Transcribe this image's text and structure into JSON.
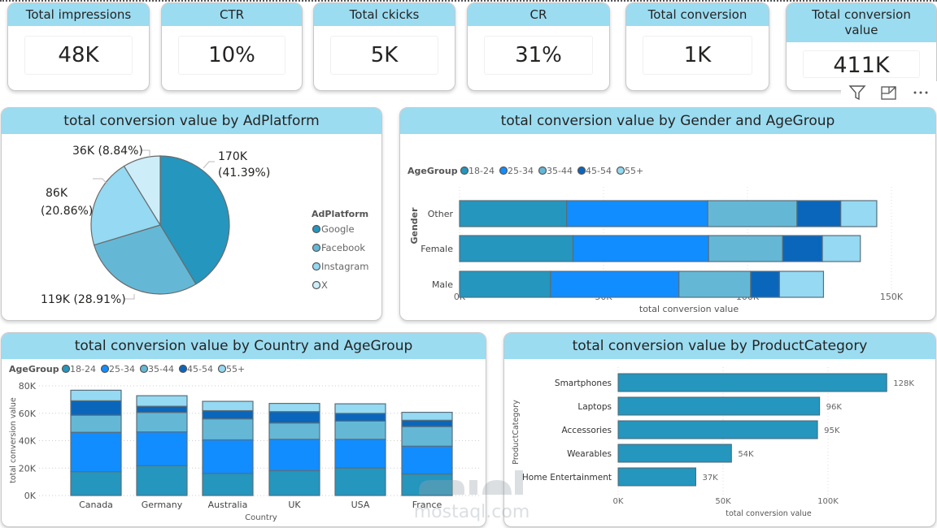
{
  "kpis": [
    {
      "label": "Total impressions",
      "value": "48K"
    },
    {
      "label": "CTR",
      "value": "10%"
    },
    {
      "label": "Total ckicks",
      "value": "5K"
    },
    {
      "label": "CR",
      "value": "31%"
    },
    {
      "label": "Total conversion",
      "value": "1K"
    },
    {
      "label": "Total conversion value",
      "value": "411K"
    }
  ],
  "visual_header": {
    "icons": [
      "filter-icon",
      "focus-mode-icon",
      "more-options-icon"
    ]
  },
  "colors": {
    "header_bg": "#9bdcf1",
    "age_18_24": "#2596be",
    "age_25_34": "#118dff",
    "age_35_44": "#64b8d6",
    "age_45_54": "#0a66bb",
    "age_55_plus": "#95d9f2",
    "google": "#2596be",
    "facebook": "#64b8d6",
    "instagram": "#95d9f2",
    "x": "#cdeef9"
  },
  "watermark": {
    "text": "mostaql.com"
  },
  "chart_data": [
    {
      "type": "pie",
      "title": "total conversion value by AdPlatform",
      "legend_title": "AdPlatform",
      "legend_position": "right",
      "slices": [
        {
          "name": "Google",
          "value": 170,
          "label": "170K",
          "pct": "(41.39%)"
        },
        {
          "name": "Facebook",
          "value": 119,
          "label": "119K",
          "pct": "(28.91%)"
        },
        {
          "name": "Instagram",
          "value": 86,
          "label": "86K",
          "pct": "(20.86%)"
        },
        {
          "name": "X",
          "value": 36,
          "label": "36K",
          "pct": "(8.84%)"
        }
      ]
    },
    {
      "type": "bar",
      "orientation": "horizontal-stacked",
      "title": "total conversion value by Gender and AgeGroup",
      "legend_title": "AgeGroup",
      "legend_position": "top-left",
      "categories": [
        "Other",
        "Female",
        "Male"
      ],
      "xlabel": "total conversion value",
      "ylabel": "Gender",
      "xlim": [
        0,
        150000
      ],
      "xticks": [
        "0K",
        "50K",
        "100K",
        "150K"
      ],
      "series": [
        {
          "name": "18-24",
          "values": [
            37200,
            39400,
            31600
          ]
        },
        {
          "name": "25-34",
          "values": [
            49000,
            47100,
            44600
          ]
        },
        {
          "name": "35-44",
          "values": [
            31000,
            25700,
            24900
          ]
        },
        {
          "name": "45-54",
          "values": [
            15200,
            13800,
            10000
          ]
        },
        {
          "name": "55+",
          "values": [
            12500,
            13200,
            15300
          ]
        }
      ]
    },
    {
      "type": "bar",
      "orientation": "vertical-stacked",
      "title": "total conversion value by Country and AgeGroup",
      "legend_title": "AgeGroup",
      "legend_position": "top-left",
      "categories": [
        "Canada",
        "Germany",
        "Australia",
        "UK",
        "USA",
        "France"
      ],
      "xlabel": "Country",
      "ylabel": "total conversion value",
      "ylim": [
        0,
        80000
      ],
      "yticks": [
        "0K",
        "20K",
        "40K",
        "60K",
        "80K"
      ],
      "series": [
        {
          "name": "18-24",
          "values": [
            17400,
            21700,
            16100,
            18100,
            20100,
            15700
          ]
        },
        {
          "name": "25-34",
          "values": [
            28700,
            24700,
            24500,
            22900,
            20900,
            20300
          ]
        },
        {
          "name": "35-44",
          "values": [
            12500,
            14200,
            15300,
            11900,
            13300,
            14300
          ]
        },
        {
          "name": "45-54",
          "values": [
            10500,
            4500,
            6000,
            8300,
            5600,
            4600
          ]
        },
        {
          "name": "55+",
          "values": [
            7700,
            7700,
            6800,
            6000,
            7000,
            5800
          ]
        }
      ]
    },
    {
      "type": "bar",
      "orientation": "horizontal",
      "title": "total conversion value by ProductCategory",
      "categories": [
        "Smartphones",
        "Laptops",
        "Accessories",
        "Wearables",
        "Home Entertainment"
      ],
      "values": [
        128000,
        96000,
        95000,
        54000,
        37000
      ],
      "data_labels": [
        "128K",
        "96K",
        "95K",
        "54K",
        "37K"
      ],
      "xlabel": "total conversion value",
      "ylabel": "ProductCategory",
      "xlim": [
        0,
        140000
      ],
      "xticks": [
        "0K",
        "50K",
        "100K"
      ]
    }
  ]
}
